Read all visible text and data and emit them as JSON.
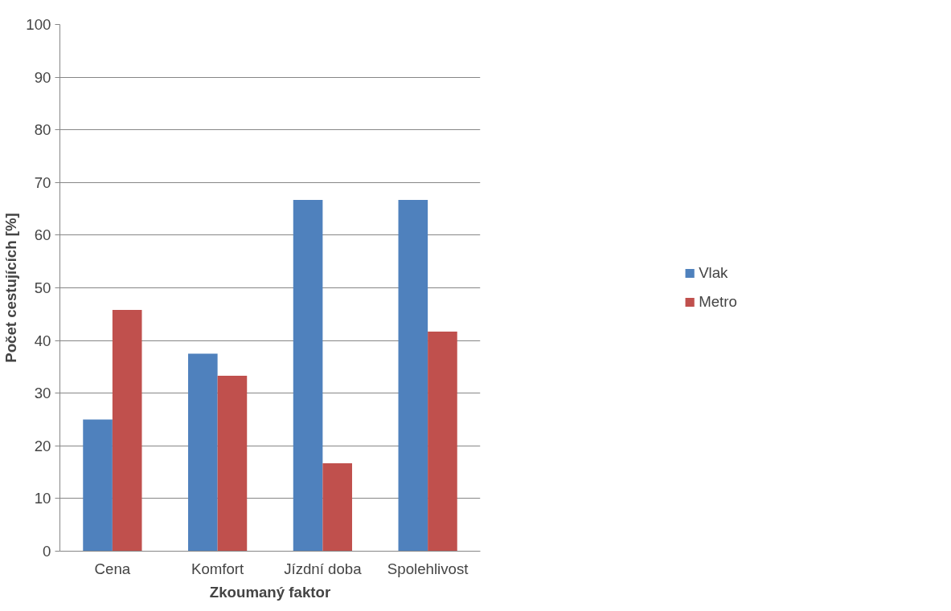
{
  "chart_data": {
    "type": "bar",
    "xlabel": "Zkoumaný faktor",
    "ylabel": "Počet cestujících [%]",
    "categories": [
      "Cena",
      "Komfort",
      "Jízdní doba",
      "Spolehlivost"
    ],
    "series": [
      {
        "name": "Vlak",
        "color": "#4f81bd",
        "values": [
          25,
          37.5,
          66.7,
          66.7
        ]
      },
      {
        "name": "Metro",
        "color": "#c0504d",
        "values": [
          45.8,
          33.3,
          16.7,
          41.7
        ]
      }
    ],
    "ylim": [
      0,
      100
    ],
    "yticks": [
      0,
      10,
      20,
      30,
      40,
      50,
      60,
      70,
      80,
      90,
      100
    ],
    "grid": "y",
    "legend": "right"
  }
}
